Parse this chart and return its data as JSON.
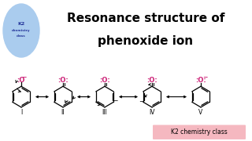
{
  "title_line1": "Resonance structure of",
  "title_line2": "phenoxide ion",
  "title_bg": "#f5b8c0",
  "title_color": "#000000",
  "body_bg": "#ffffff",
  "magenta": "#cc2277",
  "black": "#000000",
  "watermark_bg": "#f5b8c0",
  "watermark_text": "K2 chemistry class",
  "labels": [
    "I",
    "II",
    "III",
    "IV",
    "V"
  ],
  "logo_circle_color": "#aaccee",
  "logo_text_color": "#223399"
}
